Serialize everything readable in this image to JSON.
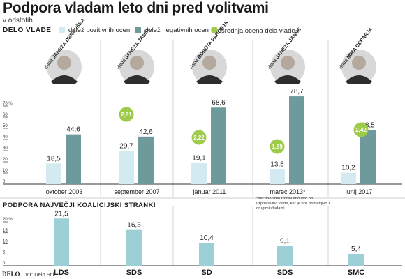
{
  "title": "Podpora vladam leto dni pred volitvami",
  "subtitle": "v odstotih",
  "section1_label": "DELO VLADE",
  "section2_label": "PODPORA NAJVEČJI KOALICIJSKI STRANKI",
  "legend": {
    "positive": "delež pozitivnih ocen",
    "negative": "delež negativnih ocen",
    "average": "srednja ocena dela vlade"
  },
  "colors": {
    "positive": "#d3eaf1",
    "negative": "#6f9a9b",
    "average": "#9fcb4b",
    "party": "#9dd0d6",
    "axis": "#333333"
  },
  "footnote": "*načrtno smo izbrali eno leto po vzpostavitvi vlade, ker je bolj primerljivo z drugimi vladami",
  "footer": {
    "logo": "DELO",
    "source": "Vir: Delo Stik"
  },
  "chart_data": [
    {
      "type": "bar",
      "title": "DELO VLADE",
      "ylabel": "%",
      "ylim": [
        0,
        80
      ],
      "yticks": [
        0,
        10,
        20,
        30,
        40,
        50,
        60,
        70
      ],
      "ytick_labels": [
        "0",
        "10",
        "20",
        "30",
        "40",
        "50",
        "60",
        "70 %"
      ],
      "categories": [
        "oktober 2003",
        "september 2007",
        "januar 2011",
        "marec 2013*",
        "junij 2017"
      ],
      "governments": [
        {
          "prefix": "vlada",
          "name": "JANEZA DRNOVŠKA"
        },
        {
          "prefix": "vlada",
          "name": "JANEZA JANŠE"
        },
        {
          "prefix": "vlada",
          "name": "BORUTA PAHORJA"
        },
        {
          "prefix": "vlada",
          "name": "JANEZA JANŠE"
        },
        {
          "prefix": "vlada",
          "name": "MIRA CERARJA"
        }
      ],
      "series": [
        {
          "name": "delež pozitivnih ocen",
          "values": [
            18.5,
            29.7,
            19.1,
            13.5,
            10.2
          ],
          "labels": [
            "18,5",
            "29,7",
            "19,1",
            "13,5",
            "10,2"
          ]
        },
        {
          "name": "delež negativnih ocen",
          "values": [
            44.6,
            42.6,
            68.6,
            78.7,
            48.5
          ],
          "labels": [
            "44,6",
            "42,6",
            "68,6",
            "78,7",
            "48,5"
          ]
        }
      ],
      "average_rating": {
        "name": "srednja ocena dela vlade",
        "values": [
          null,
          2.81,
          2.22,
          1.99,
          2.42
        ],
        "labels": [
          "",
          "2,81",
          "2,22",
          "1,99",
          "2,42"
        ]
      }
    },
    {
      "type": "bar",
      "title": "PODPORA NAJVEČJI KOALICIJSKI STRANKI",
      "ylabel": "%",
      "ylim": [
        0,
        25
      ],
      "yticks": [
        0,
        5,
        10,
        15,
        20
      ],
      "ytick_labels": [
        "0",
        "5",
        "10",
        "15",
        "20 %"
      ],
      "categories": [
        "LDS",
        "SDS",
        "SD",
        "SDS",
        "SMC"
      ],
      "values": [
        21.5,
        16.3,
        10.4,
        9.1,
        5.4
      ],
      "labels": [
        "21,5",
        "16,3",
        "10,4",
        "9,1",
        "5,4"
      ]
    }
  ]
}
